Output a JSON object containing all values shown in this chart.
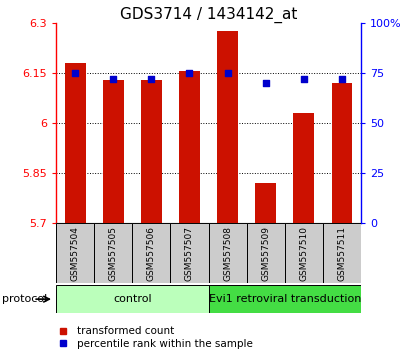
{
  "title": "GDS3714 / 1434142_at",
  "samples": [
    "GSM557504",
    "GSM557505",
    "GSM557506",
    "GSM557507",
    "GSM557508",
    "GSM557509",
    "GSM557510",
    "GSM557511"
  ],
  "bar_values": [
    6.18,
    6.13,
    6.13,
    6.155,
    6.275,
    5.82,
    6.03,
    6.12
  ],
  "dot_values": [
    75,
    72,
    72,
    75,
    75,
    70,
    72,
    72
  ],
  "ylim_left": [
    5.7,
    6.3
  ],
  "ylim_right": [
    0,
    100
  ],
  "yticks_left": [
    5.7,
    5.85,
    6.0,
    6.15,
    6.3
  ],
  "yticks_right": [
    0,
    25,
    50,
    75,
    100
  ],
  "ytick_labels_left": [
    "5.7",
    "5.85",
    "6",
    "6.15",
    "6.3"
  ],
  "ytick_labels_right": [
    "0",
    "25",
    "50",
    "75",
    "100%"
  ],
  "hlines": [
    5.85,
    6.0,
    6.15
  ],
  "bar_color": "#cc1100",
  "dot_color": "#0000cc",
  "bar_width": 0.55,
  "groups": [
    {
      "label": "control",
      "samples": [
        0,
        1,
        2,
        3
      ],
      "color": "#bbffbb"
    },
    {
      "label": "Evi1 retroviral transduction",
      "samples": [
        4,
        5,
        6,
        7
      ],
      "color": "#44dd44"
    }
  ],
  "protocol_label": "protocol",
  "legend_bar_label": "transformed count",
  "legend_dot_label": "percentile rank within the sample",
  "sample_box_color": "#cccccc",
  "title_fontsize": 11,
  "tick_fontsize": 8,
  "sample_fontsize": 6.5,
  "proto_fontsize": 8,
  "legend_fontsize": 7.5
}
